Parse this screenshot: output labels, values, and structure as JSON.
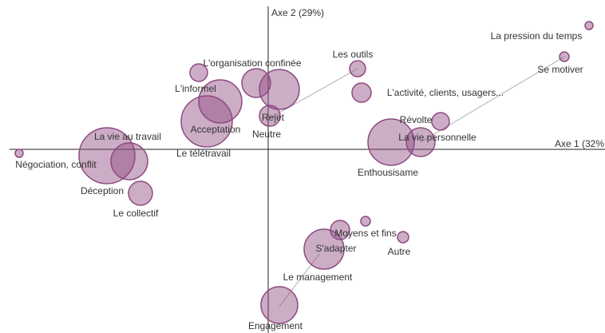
{
  "chart_data": {
    "type": "scatter",
    "x_label": "Axe 1 (32%",
    "y_label": "Axe 2 (29%)",
    "labels": [
      "La pression du temps",
      "Se motiver",
      "Les outils",
      "L'activité, clients, usagers...",
      "Révolte",
      "La vie personnelle",
      "Enthousisame",
      "L'organisation confinée",
      "Neutre",
      "Rejet",
      "L'informel",
      "Le télétravail",
      "Acceptation",
      "La vie au travail",
      "Déception",
      "Le collectif",
      "Négociation, conflit",
      "Moyens et fins",
      "Le management",
      "Autre",
      "S'adapter",
      "Engagement"
    ],
    "x": [
      4.02,
      3.71,
      1.12,
      1.17,
      2.16,
      1.91,
      1.54,
      -0.15,
      0.14,
      0.02,
      -0.87,
      -0.6,
      -0.77,
      -2.02,
      -1.74,
      -1.6,
      -3.12,
      1.22,
      0.9,
      1.69,
      0.7,
      0.14
    ],
    "values": [
      1.55,
      1.16,
      1.01,
      0.71,
      0.35,
      0.09,
      0.09,
      0.83,
      0.75,
      0.42,
      0.96,
      0.6,
      0.35,
      -0.08,
      -0.15,
      -0.55,
      -0.05,
      -0.9,
      -1.01,
      -1.1,
      -1.25,
      -1.95
    ],
    "sizes": [
      5,
      6,
      10,
      12,
      11,
      18,
      29,
      18,
      25,
      13,
      11,
      27,
      32,
      35,
      23,
      15,
      5,
      6,
      12,
      7,
      25,
      23
    ],
    "color": "#8e4a80",
    "xlim": [
      -3.24,
      4.22
    ],
    "ylim": [
      -2.3,
      1.79
    ]
  }
}
